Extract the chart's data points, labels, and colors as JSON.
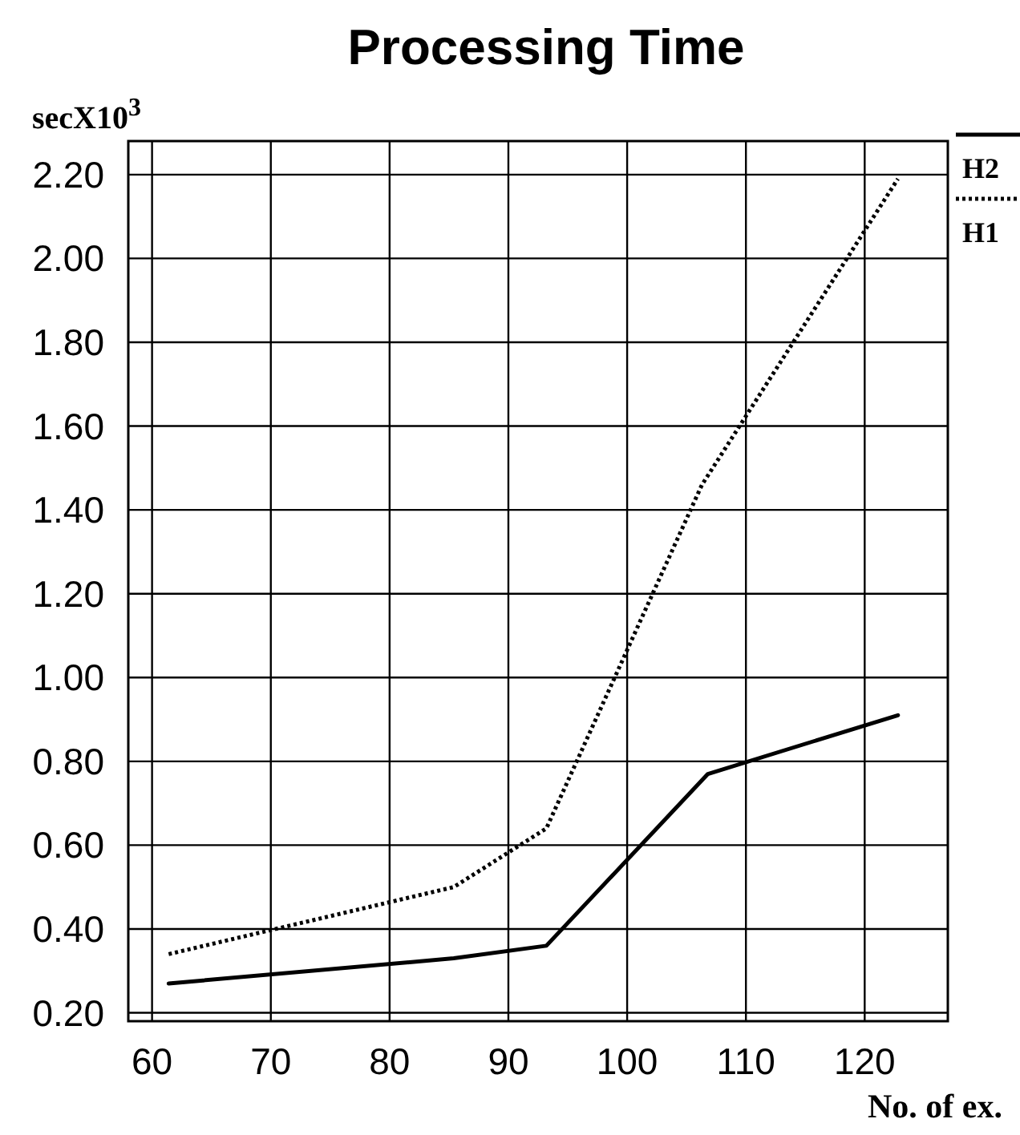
{
  "chart_data": {
    "type": "line",
    "title": "Processing Time",
    "xlabel": "No. of ex.",
    "ylabel": "secX10$^{3}$",
    "xlim": [
      58,
      127
    ],
    "xticks": [
      60,
      70,
      80,
      90,
      100,
      110,
      120
    ],
    "ylim": [
      0.18,
      2.28
    ],
    "yticks": [
      {
        "value": 0.2,
        "label": "0.20"
      },
      {
        "value": 0.4,
        "label": "0.40"
      },
      {
        "value": 0.6,
        "label": "0.60"
      },
      {
        "value": 0.8,
        "label": "0.80"
      },
      {
        "value": 1,
        "label": "1.00"
      },
      {
        "value": 1.2,
        "label": "1.20"
      },
      {
        "value": 1.4,
        "label": "1.40"
      },
      {
        "value": 1.6,
        "label": "1.60"
      },
      {
        "value": 1.8,
        "label": "1.80"
      },
      {
        "value": 2,
        "label": "2.00"
      },
      {
        "value": 2.2,
        "label": "2.20"
      }
    ],
    "grid": true,
    "legend": "top right",
    "marker": "none",
    "series": [
      {
        "name": "H2",
        "color": "#000000",
        "line_style": "solid",
        "x": [
          61.4,
          85.4,
          93.2,
          106.8,
          122.8
        ],
        "values": [
          0.27,
          0.33,
          0.36,
          0.77,
          0.91
        ]
      },
      {
        "name": "H1",
        "color": "#000000",
        "line_style": "dotted",
        "x": [
          61.4,
          85.4,
          93.2,
          106.3,
          122.8
        ],
        "values": [
          0.34,
          0.5,
          0.64,
          1.46,
          2.19
        ]
      }
    ]
  }
}
